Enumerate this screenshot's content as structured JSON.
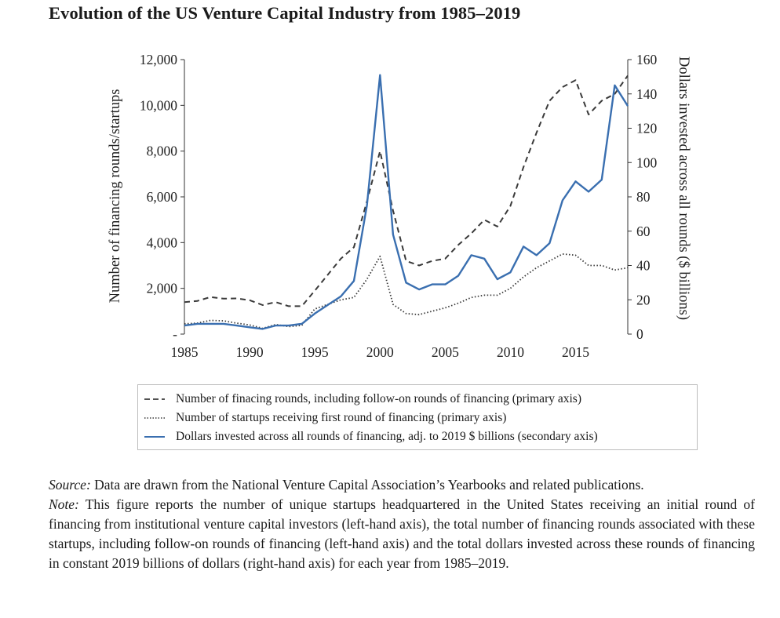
{
  "title": "Evolution of the US Venture Capital Industry from 1985–2019",
  "chart_data": {
    "type": "line",
    "x": [
      1985,
      1986,
      1987,
      1988,
      1989,
      1990,
      1991,
      1992,
      1993,
      1994,
      1995,
      1996,
      1997,
      1998,
      1999,
      2000,
      2001,
      2002,
      2003,
      2004,
      2005,
      2006,
      2007,
      2008,
      2009,
      2010,
      2011,
      2012,
      2013,
      2014,
      2015,
      2016,
      2017,
      2018,
      2019
    ],
    "xticks": [
      1985,
      1990,
      1995,
      2000,
      2005,
      2010,
      2015
    ],
    "xlim": [
      1985,
      2019
    ],
    "y_primary": {
      "label": "Number of financing rounds/startups",
      "lim": [
        0,
        12000
      ],
      "ticks": [
        0,
        2000,
        4000,
        6000,
        8000,
        10000,
        12000
      ],
      "tick_labels": [
        "-",
        "2,000",
        "4,000",
        "6,000",
        "8,000",
        "10,000",
        "12,000"
      ]
    },
    "y_secondary": {
      "label": "Dollars invested across all rounds ($ billions)",
      "lim": [
        0,
        160
      ],
      "ticks": [
        0,
        20,
        40,
        60,
        80,
        100,
        120,
        140,
        160
      ]
    },
    "series": [
      {
        "name": "Number of finacing rounds, including follow-on rounds of financing (primary axis)",
        "axis": "primary",
        "style": "dashed",
        "color": "#3a3a3a",
        "values": [
          1400,
          1450,
          1620,
          1550,
          1560,
          1480,
          1270,
          1400,
          1220,
          1220,
          1900,
          2600,
          3300,
          3800,
          5800,
          8000,
          5400,
          3200,
          3000,
          3200,
          3300,
          3900,
          4400,
          5000,
          4700,
          5600,
          7300,
          8800,
          10200,
          10800,
          11100,
          9600,
          10200,
          10500,
          11300
        ]
      },
      {
        "name": "Number of startups receiving first round of financing (primary axis)",
        "axis": "primary",
        "style": "dotted",
        "color": "#3a3a3a",
        "values": [
          450,
          480,
          600,
          580,
          480,
          400,
          250,
          420,
          330,
          380,
          1100,
          1300,
          1500,
          1600,
          2400,
          3400,
          1300,
          900,
          850,
          1000,
          1150,
          1350,
          1600,
          1700,
          1700,
          2000,
          2500,
          2900,
          3200,
          3500,
          3450,
          3000,
          3000,
          2800,
          2900
        ]
      },
      {
        "name": "Dollars invested across all rounds of financing, adj. to 2019 $ billions (secondary axis)",
        "axis": "secondary",
        "style": "solid",
        "color": "#3a6fb0",
        "values": [
          5,
          6,
          6,
          6,
          5,
          4,
          3,
          5,
          5,
          6,
          12,
          17,
          22,
          31,
          75,
          151,
          58,
          30,
          26,
          29,
          29,
          34,
          46,
          44,
          32,
          36,
          51,
          46,
          53,
          78,
          89,
          83,
          90,
          145,
          133
        ]
      }
    ],
    "grid": false,
    "legend_position": "bottom"
  },
  "notes": {
    "source_label": "Source:",
    "source_text": " Data are drawn from the National Venture Capital Association’s Yearbooks and related publications.",
    "note_label": "Note:",
    "note_text": " This figure reports the number of unique startups headquartered in the United States receiving an initial round of financing from institutional venture capital investors (left-hand axis), the total number of financing rounds associated with these startups, including follow-on rounds of financing (left-hand axis) and the total dollars invested across these rounds of financing in constant 2019 billions of dollars (right-hand axis) for each year from 1985–2019."
  }
}
